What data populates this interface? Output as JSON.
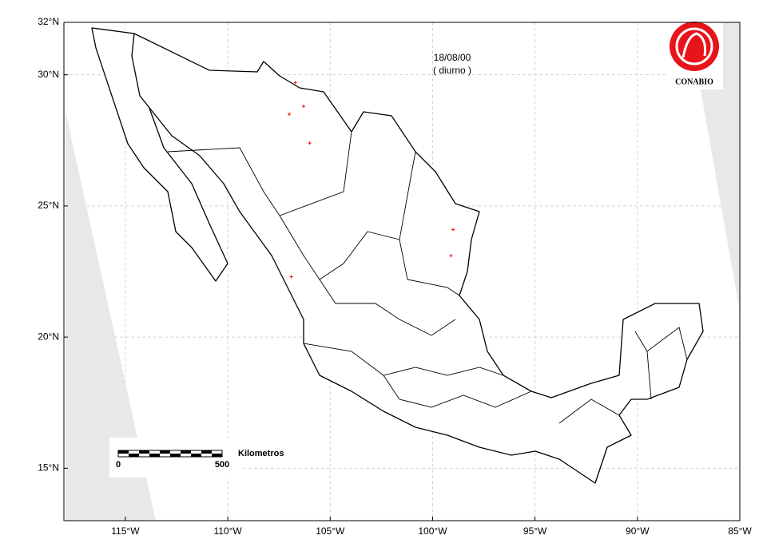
{
  "chart_data": {
    "type": "map",
    "annotation_date": "18/08/00",
    "annotation_period": "( diurno )",
    "logo_text": "CONABIO",
    "scale_label": "Kilometros",
    "scale_start": "0",
    "scale_end": "500",
    "xlim": [
      -118,
      -85
    ],
    "ylim": [
      13,
      32
    ],
    "xticks": [
      {
        "value": -115,
        "label": "115°W"
      },
      {
        "value": -110,
        "label": "110°W"
      },
      {
        "value": -105,
        "label": "105°W"
      },
      {
        "value": -100,
        "label": "100°W"
      },
      {
        "value": -95,
        "label": "95°W"
      },
      {
        "value": -90,
        "label": "90°W"
      },
      {
        "value": -85,
        "label": "85°W"
      }
    ],
    "yticks": [
      {
        "value": 32,
        "label": "32°N"
      },
      {
        "value": 30,
        "label": "30°N"
      },
      {
        "value": 25,
        "label": "25°N"
      },
      {
        "value": 20,
        "label": "20°N"
      },
      {
        "value": 15,
        "label": "15°N"
      }
    ],
    "grid": true,
    "x": [
      -106.7,
      -106.3,
      -107.0,
      -106.0,
      -99.0,
      -99.1,
      -106.9
    ],
    "values": [
      29.7,
      28.8,
      28.5,
      27.4,
      24.1,
      23.1,
      22.3
    ],
    "color": "#ff0000"
  }
}
